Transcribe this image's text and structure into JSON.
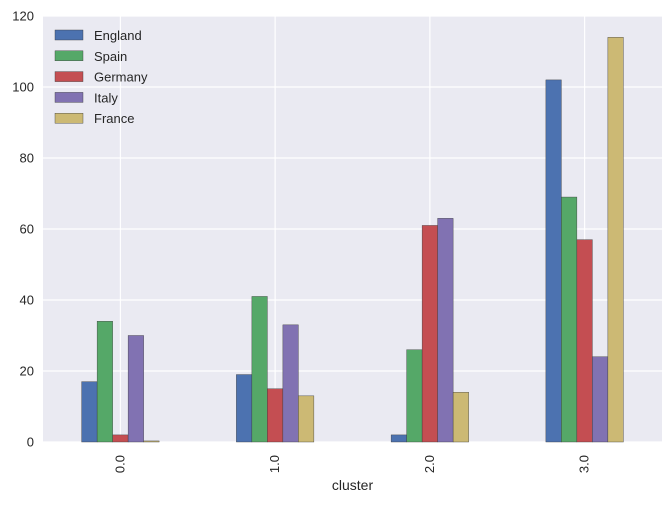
{
  "chart_data": {
    "type": "bar",
    "title": "",
    "xlabel": "cluster",
    "ylabel": "",
    "categories": [
      "0.0",
      "1.0",
      "2.0",
      "3.0"
    ],
    "ylim": [
      0,
      120
    ],
    "yticks": [
      0,
      20,
      40,
      60,
      80,
      100,
      120
    ],
    "grid": true,
    "legend_position": "top-left",
    "series": [
      {
        "name": "England",
        "color": "#4C72B0",
        "values": [
          17,
          19,
          2,
          102
        ]
      },
      {
        "name": "Spain",
        "color": "#55A868",
        "values": [
          34,
          41,
          26,
          69
        ]
      },
      {
        "name": "Germany",
        "color": "#C44E52",
        "values": [
          2,
          15,
          61,
          57
        ]
      },
      {
        "name": "Italy",
        "color": "#8172B2",
        "values": [
          30,
          33,
          63,
          24
        ]
      },
      {
        "name": "France",
        "color": "#CCB974",
        "values": [
          0.3,
          13,
          14,
          114
        ]
      }
    ],
    "plot_background": "#EAEAF2",
    "grid_color": "#FFFFFF"
  }
}
